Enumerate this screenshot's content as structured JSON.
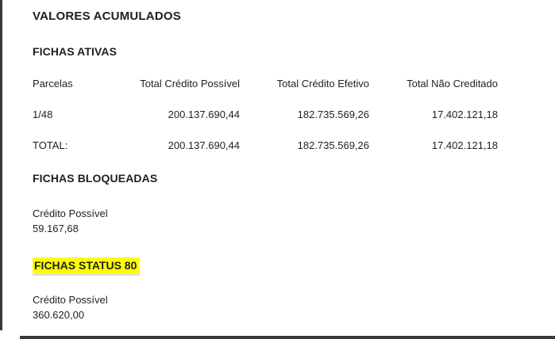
{
  "frame": {
    "border_color": "#3a3a3e"
  },
  "page": {
    "title": "VALORES ACUMULADOS"
  },
  "fichas_ativas": {
    "heading": "FICHAS ATIVAS",
    "table": {
      "columns": [
        "Parcelas",
        "Total Crédito Possível",
        "Total Crédito Efetivo",
        "Total Não Creditado"
      ],
      "rows": [
        [
          "1/48",
          "200.137.690,44",
          "182.735.569,26",
          "17.402.121,18"
        ],
        [
          "TOTAL:",
          "200.137.690,44",
          "182.735.569,26",
          "17.402.121,18"
        ]
      ]
    }
  },
  "fichas_bloqueadas": {
    "heading": "FICHAS BLOQUEADAS",
    "label": "Crédito Possível",
    "value": "59.167,68"
  },
  "fichas_status_80": {
    "heading": "FICHAS STATUS 80",
    "highlight_color": "#ffff00",
    "label": "Crédito Possível",
    "value": "360.620,00"
  }
}
